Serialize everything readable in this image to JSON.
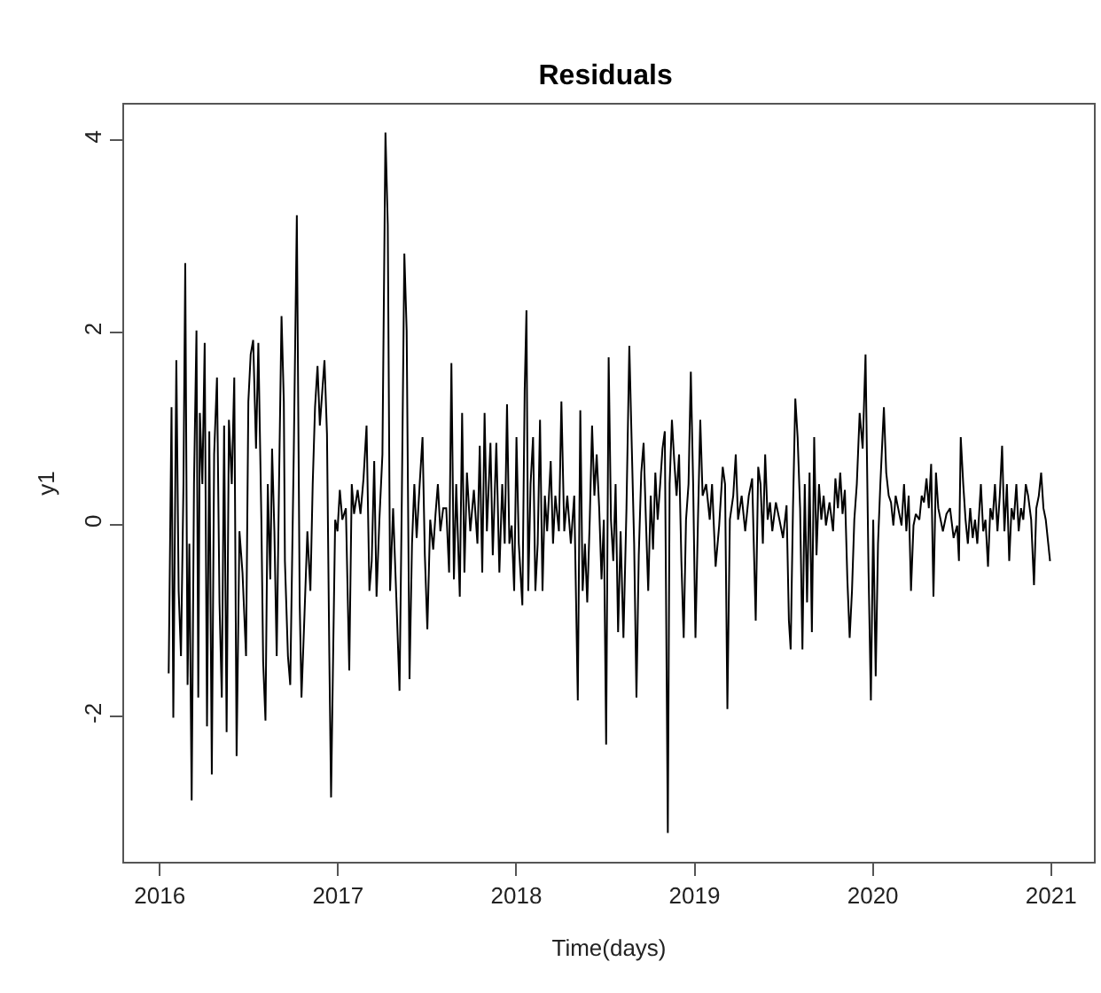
{
  "chart_data": {
    "type": "line",
    "title": "Residuals",
    "xlabel": "Time(days)",
    "ylabel": "y1",
    "xlim": [
      2015.8,
      2021.24
    ],
    "ylim": [
      -3.51,
      4.37
    ],
    "xticks": [
      2016,
      2017,
      2018,
      2019,
      2020,
      2021
    ],
    "yticks": [
      -2,
      0,
      2,
      4
    ],
    "marker": "none",
    "line_style": "solid",
    "x": [
      2016.05,
      2016.066,
      2016.076,
      2016.093,
      2016.106,
      2016.119,
      2016.133,
      2016.143,
      2016.156,
      2016.166,
      2016.179,
      2016.192,
      2016.206,
      2016.216,
      2016.225,
      2016.239,
      2016.252,
      2016.265,
      2016.278,
      2016.292,
      2016.305,
      2016.321,
      2016.335,
      2016.348,
      2016.361,
      2016.375,
      2016.388,
      2016.404,
      2016.418,
      2016.431,
      2016.447,
      2016.464,
      2016.484,
      2016.497,
      2016.51,
      2016.524,
      2016.54,
      2016.553,
      2016.57,
      2016.58,
      2016.593,
      2016.606,
      2016.62,
      2016.63,
      2016.643,
      2016.656,
      2016.669,
      2016.683,
      2016.696,
      2016.702,
      2016.719,
      2016.732,
      2016.752,
      2016.769,
      2016.785,
      2016.795,
      2016.812,
      2016.828,
      2016.845,
      2016.858,
      2016.871,
      2016.885,
      2016.898,
      2016.911,
      2016.924,
      2016.938,
      2016.951,
      2016.961,
      2016.971,
      2016.984,
      2016.997,
      2017.01,
      2017.024,
      2017.044,
      2017.063,
      2017.077,
      2017.09,
      2017.11,
      2017.126,
      2017.143,
      2017.16,
      2017.176,
      2017.189,
      2017.203,
      2017.216,
      2017.232,
      2017.249,
      2017.266,
      2017.279,
      2017.292,
      2017.309,
      2017.328,
      2017.345,
      2017.358,
      2017.372,
      2017.385,
      2017.401,
      2017.415,
      2017.428,
      2017.441,
      2017.458,
      2017.474,
      2017.487,
      2017.501,
      2017.517,
      2017.534,
      2017.547,
      2017.56,
      2017.574,
      2017.59,
      2017.607,
      2017.623,
      2017.636,
      2017.65,
      2017.663,
      2017.683,
      2017.696,
      2017.709,
      2017.723,
      2017.742,
      2017.762,
      2017.782,
      2017.795,
      2017.809,
      2017.822,
      2017.835,
      2017.855,
      2017.868,
      2017.888,
      2017.905,
      2017.921,
      2017.935,
      2017.948,
      2017.961,
      2017.974,
      2017.988,
      2018.001,
      2018.014,
      2018.034,
      2018.047,
      2018.057,
      2018.067,
      2018.08,
      2018.094,
      2018.107,
      2018.12,
      2018.133,
      2018.147,
      2018.16,
      2018.173,
      2018.193,
      2018.206,
      2018.219,
      2018.239,
      2018.253,
      2018.269,
      2018.286,
      2018.306,
      2018.325,
      2018.345,
      2018.359,
      2018.372,
      2018.385,
      2018.398,
      2018.412,
      2018.425,
      2018.438,
      2018.451,
      2018.465,
      2018.478,
      2018.491,
      2018.504,
      2018.518,
      2018.531,
      2018.544,
      2018.557,
      2018.571,
      2018.585,
      2018.601,
      2018.618,
      2018.634,
      2018.648,
      2018.661,
      2018.674,
      2018.687,
      2018.701,
      2018.714,
      2018.727,
      2018.74,
      2018.754,
      2018.767,
      2018.78,
      2018.793,
      2018.807,
      2018.82,
      2018.833,
      2018.85,
      2018.86,
      2018.873,
      2018.886,
      2018.899,
      2018.913,
      2018.926,
      2018.939,
      2018.952,
      2018.966,
      2018.979,
      2018.992,
      2019.005,
      2019.019,
      2019.032,
      2019.045,
      2019.065,
      2019.085,
      2019.098,
      2019.118,
      2019.138,
      2019.158,
      2019.171,
      2019.184,
      2019.198,
      2019.217,
      2019.231,
      2019.244,
      2019.264,
      2019.284,
      2019.304,
      2019.323,
      2019.343,
      2019.357,
      2019.37,
      2019.383,
      2019.396,
      2019.41,
      2019.423,
      2019.436,
      2019.456,
      2019.476,
      2019.496,
      2019.516,
      2019.529,
      2019.539,
      2019.552,
      2019.565,
      2019.578,
      2019.592,
      2019.605,
      2019.618,
      2019.631,
      2019.645,
      2019.658,
      2019.671,
      2019.684,
      2019.698,
      2019.711,
      2019.724,
      2019.737,
      2019.757,
      2019.777,
      2019.79,
      2019.804,
      2019.817,
      2019.83,
      2019.843,
      2019.857,
      2019.87,
      2019.883,
      2019.896,
      2019.91,
      2019.926,
      2019.943,
      2019.959,
      2019.976,
      2019.989,
      2020.002,
      2020.016,
      2020.029,
      2020.042,
      2020.062,
      2020.075,
      2020.089,
      2020.102,
      2020.115,
      2020.128,
      2020.142,
      2020.161,
      2020.175,
      2020.188,
      2020.201,
      2020.214,
      2020.228,
      2020.241,
      2020.261,
      2020.274,
      2020.287,
      2020.301,
      2020.314,
      2020.327,
      2020.34,
      2020.354,
      2020.367,
      2020.38,
      2020.393,
      2020.413,
      2020.433,
      2020.453,
      2020.473,
      2020.483,
      2020.493,
      2020.507,
      2020.52,
      2020.533,
      2020.546,
      2020.56,
      2020.573,
      2020.586,
      2020.606,
      2020.619,
      2020.632,
      2020.646,
      2020.659,
      2020.672,
      2020.685,
      2020.699,
      2020.712,
      2020.725,
      2020.738,
      2020.752,
      2020.765,
      2020.778,
      2020.791,
      2020.805,
      2020.818,
      2020.831,
      2020.844,
      2020.858,
      2020.871,
      2020.888,
      2020.904,
      2020.917,
      2020.931,
      2020.944,
      2020.957,
      2020.97,
      2020.984,
      2020.994
    ],
    "series": [
      {
        "color": "#000000",
        "values": [
          -1.55,
          1.22,
          -2.01,
          1.71,
          -0.69,
          -1.37,
          0.42,
          2.72,
          -1.67,
          -0.2,
          -2.87,
          0.42,
          2.02,
          -1.8,
          1.16,
          0.42,
          1.89,
          -2.1,
          0.97,
          -2.6,
          0.73,
          1.53,
          -0.81,
          -1.8,
          1.03,
          -2.16,
          1.09,
          0.42,
          1.53,
          -2.41,
          -0.07,
          -0.5,
          -1.37,
          1.28,
          1.77,
          1.92,
          0.79,
          1.89,
          0.05,
          -1.43,
          -2.04,
          0.42,
          -0.57,
          0.79,
          -0.07,
          -1.37,
          0.42,
          2.17,
          1.28,
          -0.38,
          -1.37,
          -1.67,
          0.79,
          3.22,
          -0.81,
          -1.8,
          -0.93,
          -0.07,
          -0.69,
          0.42,
          1.22,
          1.65,
          1.03,
          1.37,
          1.71,
          0.94,
          -1.33,
          -2.84,
          -1.55,
          0.05,
          -0.07,
          0.36,
          0.05,
          0.17,
          -1.52,
          0.42,
          0.11,
          0.36,
          0.11,
          0.48,
          1.03,
          -0.69,
          -0.38,
          0.66,
          -0.75,
          0.05,
          0.73,
          4.08,
          3.12,
          -0.69,
          0.17,
          -0.81,
          -1.73,
          0.3,
          2.82,
          2.02,
          -1.61,
          -0.2,
          0.42,
          -0.14,
          0.42,
          0.91,
          -0.32,
          -1.09,
          0.05,
          -0.26,
          0.11,
          0.42,
          -0.07,
          0.17,
          0.17,
          -0.5,
          1.68,
          -0.57,
          0.42,
          -0.75,
          1.16,
          -0.5,
          0.54,
          -0.07,
          0.36,
          -0.2,
          0.82,
          -0.5,
          1.16,
          -0.07,
          0.85,
          -0.32,
          0.85,
          -0.5,
          0.42,
          -0.2,
          1.25,
          -0.2,
          -0.01,
          -0.69,
          0.91,
          -0.2,
          -0.84,
          1.4,
          2.23,
          -0.69,
          0.42,
          0.91,
          -0.69,
          -0.2,
          1.09,
          -0.69,
          0.3,
          -0.07,
          0.66,
          -0.2,
          0.3,
          -0.07,
          1.28,
          -0.07,
          0.3,
          -0.2,
          0.3,
          -1.83,
          1.19,
          -0.69,
          -0.2,
          -0.81,
          0.05,
          1.03,
          0.3,
          0.73,
          0.17,
          -0.57,
          0.05,
          -2.29,
          1.74,
          0.05,
          -0.38,
          0.42,
          -1.12,
          -0.07,
          -1.18,
          0.17,
          1.86,
          0.79,
          -0.2,
          -1.8,
          -0.32,
          0.54,
          0.85,
          0.05,
          -0.69,
          0.3,
          -0.26,
          0.54,
          0.05,
          0.42,
          0.79,
          0.97,
          -3.21,
          0.42,
          1.09,
          0.66,
          0.3,
          0.73,
          -0.38,
          -1.18,
          0.05,
          0.42,
          1.59,
          0.42,
          -1.18,
          0.05,
          1.09,
          0.3,
          0.42,
          0.05,
          0.42,
          -0.44,
          -0.01,
          0.6,
          0.42,
          -1.92,
          0.05,
          0.3,
          0.73,
          0.05,
          0.3,
          -0.07,
          0.3,
          0.48,
          -1.0,
          0.6,
          0.42,
          -0.2,
          0.73,
          0.05,
          0.23,
          -0.07,
          0.23,
          0.05,
          -0.14,
          0.2,
          -1.0,
          -1.3,
          0.17,
          1.31,
          0.91,
          0.17,
          -1.3,
          0.42,
          -0.81,
          0.54,
          -1.12,
          0.91,
          -0.32,
          0.42,
          0.05,
          0.3,
          -0.01,
          0.23,
          -0.07,
          0.48,
          0.17,
          0.54,
          0.11,
          0.36,
          -0.57,
          -1.18,
          -0.69,
          0.05,
          0.42,
          1.16,
          0.79,
          1.77,
          -0.5,
          -1.83,
          0.05,
          -1.58,
          -0.2,
          0.42,
          1.22,
          0.54,
          0.3,
          0.23,
          -0.01,
          0.3,
          0.17,
          -0.01,
          0.42,
          -0.07,
          0.3,
          -0.69,
          -0.01,
          0.11,
          0.05,
          0.3,
          0.23,
          0.48,
          0.17,
          0.63,
          -0.75,
          0.54,
          0.17,
          0.05,
          -0.07,
          0.11,
          0.17,
          -0.14,
          -0.01,
          -0.38,
          0.91,
          0.42,
          0.05,
          -0.2,
          0.17,
          -0.14,
          0.05,
          -0.2,
          0.42,
          -0.07,
          0.05,
          -0.44,
          0.17,
          0.05,
          0.42,
          -0.07,
          0.3,
          0.82,
          -0.07,
          0.42,
          -0.38,
          0.17,
          0.05,
          0.42,
          -0.07,
          0.17,
          0.05,
          0.42,
          0.3,
          0.05,
          -0.63,
          0.17,
          0.3,
          0.54,
          0.17,
          0.05,
          -0.2,
          -0.38
        ]
      }
    ]
  }
}
